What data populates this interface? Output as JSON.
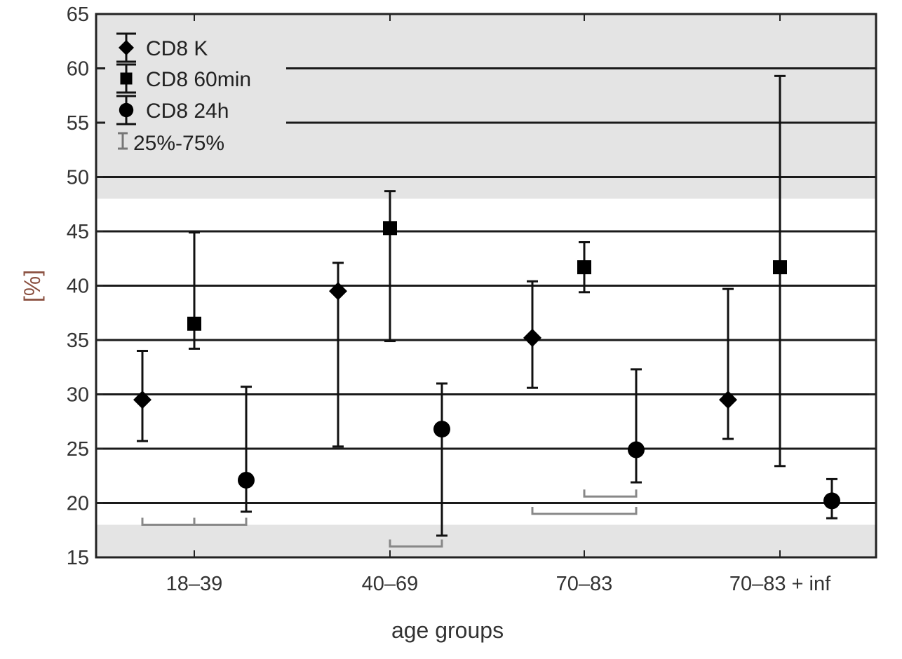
{
  "chart_data": {
    "type": "scatter",
    "xlabel": "age groups",
    "ylabel": "[%]",
    "ylim": [
      15,
      65
    ],
    "yticks": [
      15,
      20,
      25,
      30,
      35,
      40,
      45,
      50,
      55,
      60,
      65
    ],
    "categories": [
      "18–39",
      "40–69",
      "70–83",
      "70–83 + inf"
    ],
    "grid": "horizontal",
    "legend_position": "top-left",
    "shaded_bands": [
      [
        15,
        18
      ],
      [
        48,
        65
      ]
    ],
    "series": [
      {
        "name": "CD8 K",
        "marker": "diamond",
        "values": [
          29.5,
          39.5,
          35.2,
          29.5
        ],
        "q25": [
          25.7,
          25.2,
          30.6,
          25.9
        ],
        "q75": [
          34.0,
          42.1,
          40.4,
          39.7
        ]
      },
      {
        "name": "CD8 60min",
        "marker": "square",
        "values": [
          36.5,
          45.3,
          41.7,
          41.7
        ],
        "q25": [
          34.2,
          34.9,
          39.4,
          23.4
        ],
        "q75": [
          44.9,
          48.7,
          44.0,
          59.3
        ]
      },
      {
        "name": "CD8 24h",
        "marker": "circle",
        "values": [
          22.1,
          26.8,
          24.9,
          20.2
        ],
        "q25": [
          19.2,
          17.0,
          21.9,
          18.6
        ],
        "q75": [
          30.7,
          31.0,
          32.3,
          22.2
        ]
      }
    ],
    "legend_range_label": "25%-75%",
    "brackets": [
      {
        "from": 0,
        "from_series": 0,
        "to": 0,
        "to_series": 1,
        "y": 18.0
      },
      {
        "from": 0,
        "from_series": 1,
        "to": 0,
        "to_series": 2,
        "y": 18.0
      },
      {
        "from": 1,
        "from_series": 1,
        "to": 1,
        "to_series": 2,
        "y": 16.0
      },
      {
        "from": 2,
        "from_series": 1,
        "to": 2,
        "to_series": 2,
        "y": 20.6
      },
      {
        "from": 2,
        "from_series": 0,
        "to": 2,
        "to_series": 2,
        "y": 19.0
      }
    ]
  }
}
